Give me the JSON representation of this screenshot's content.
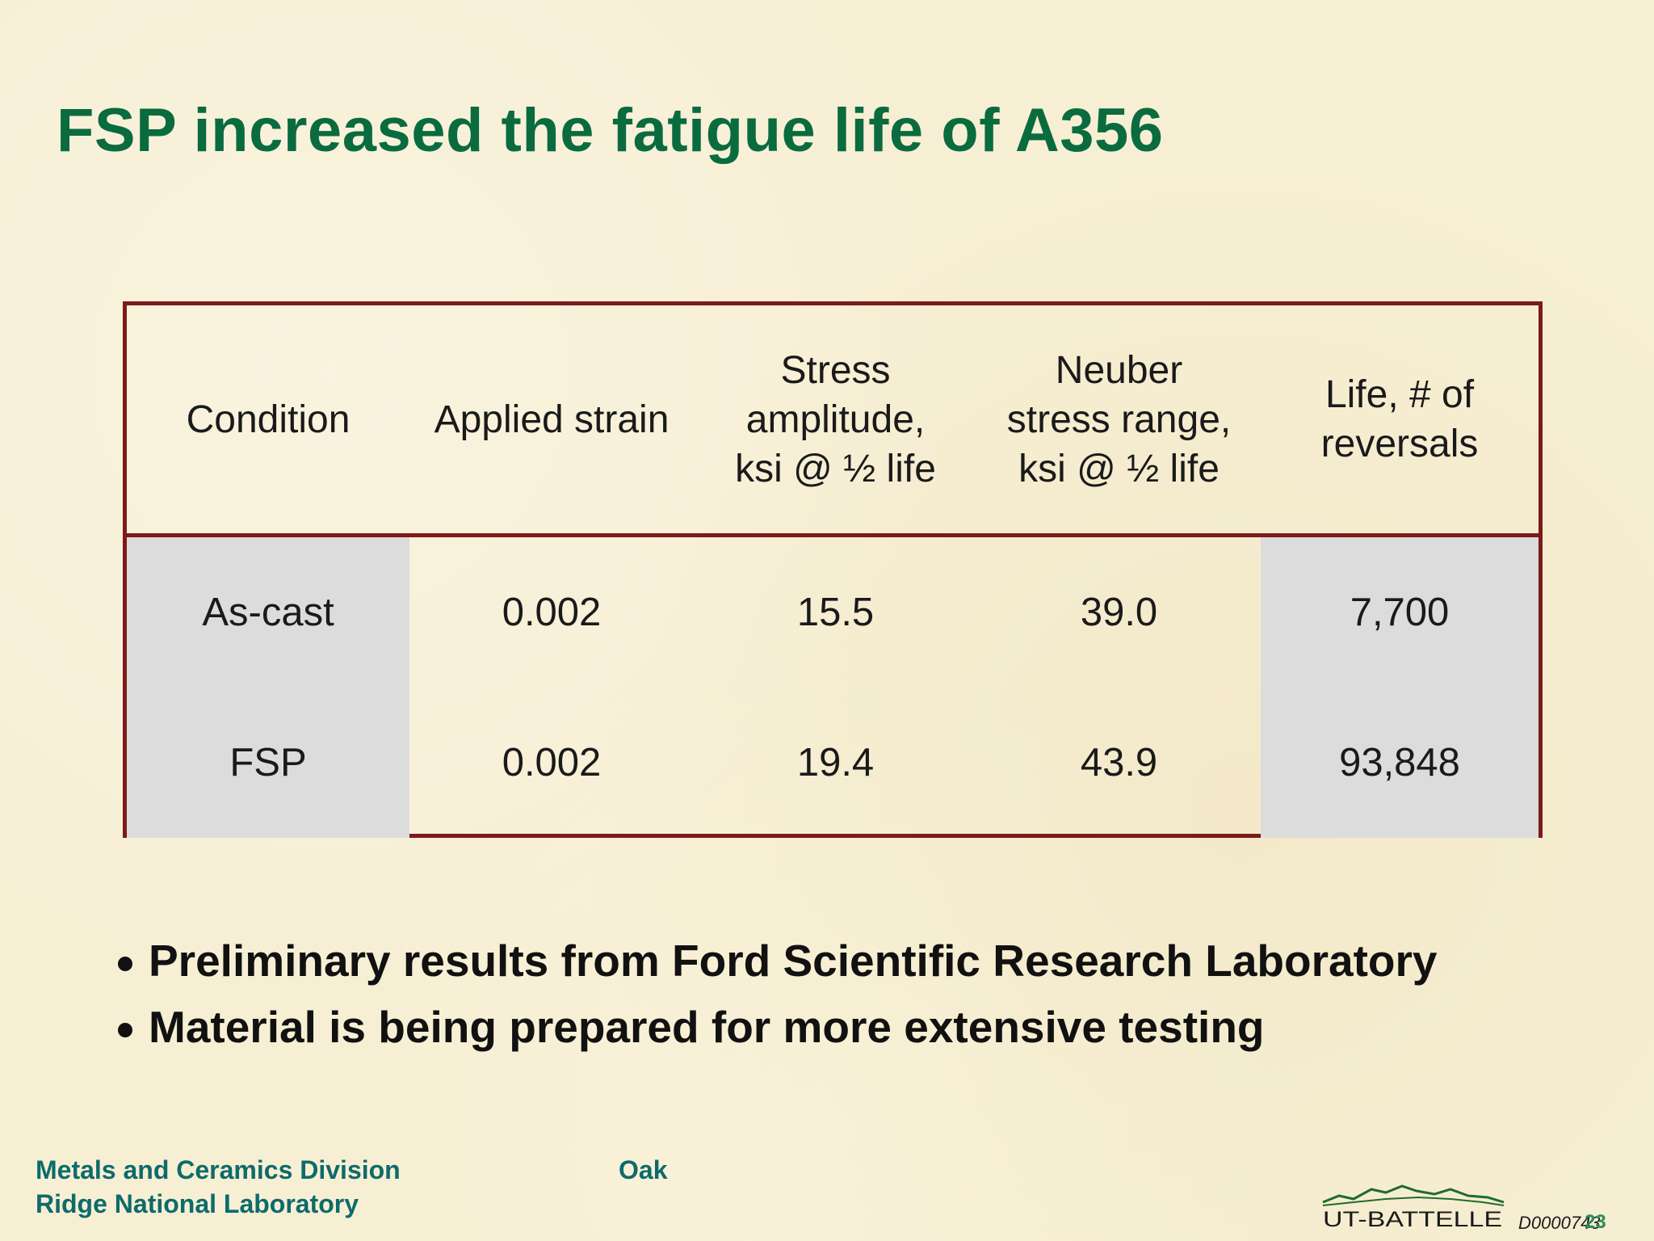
{
  "title": "FSP increased the fatigue life of A356",
  "table": {
    "headers": [
      "Condition",
      "Applied strain",
      "Stress\namplitude,\nksi @ ½ life",
      "Neuber\nstress range,\nksi @ ½ life",
      "Life, # of\nreversals"
    ],
    "rows": [
      [
        "As-cast",
        "0.002",
        "15.5",
        "39.0",
        "7,700"
      ],
      [
        "FSP",
        "0.002",
        "19.4",
        "43.9",
        "93,848"
      ]
    ]
  },
  "bullets": [
    "Preliminary results from Ford Scientific Research Laboratory",
    "Material is being prepared for more extensive testing"
  ],
  "footer": {
    "line1": "Metals and Ceramics Division",
    "oak": "Oak",
    "line2": "Ridge National Laboratory",
    "logo_text": "UT-BATTELLE",
    "slide_code": "D0000743",
    "slide_number": "23"
  },
  "colors": {
    "title": "#0a6b3f",
    "table_border": "#7d1a1a",
    "shaded_cell": "#dcdcdc",
    "footer_text": "#0d6b6b",
    "background": "#f7efd4"
  }
}
